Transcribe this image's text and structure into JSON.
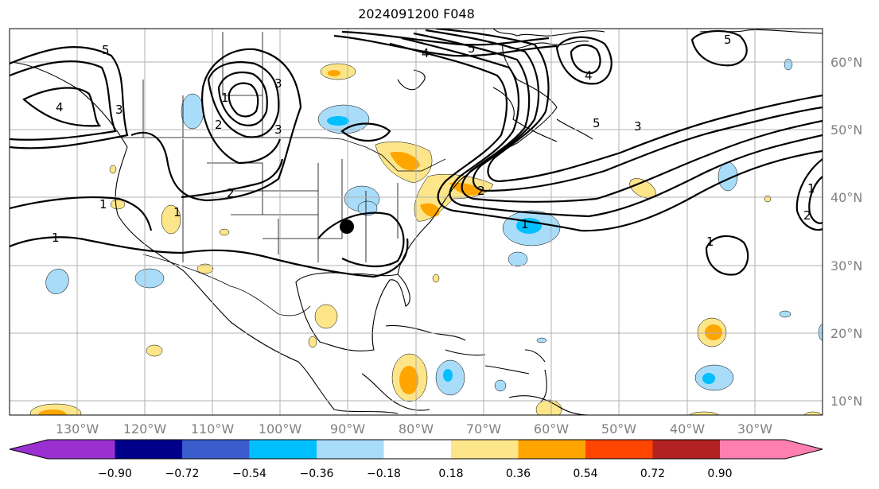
{
  "title": "2024091200 F048",
  "colors": {
    "levels": [
      "#9b30d0",
      "#00008b",
      "#3a5ccc",
      "#00bfff",
      "#a8dcf8",
      "#ffffff",
      "#fde68a",
      "#ffa500",
      "#ff4500",
      "#b22222",
      "#ff80b0"
    ],
    "contour": "#000000",
    "grid": "#b0b0b0"
  },
  "axes": {
    "lon_labels": [
      "130°W",
      "120°W",
      "110°W",
      "100°W",
      "90°W",
      "80°W",
      "70°W",
      "60°W",
      "50°W",
      "40°W",
      "30°W"
    ],
    "lat_labels": [
      "60°N",
      "50°N",
      "40°N",
      "30°N",
      "20°N",
      "10°N"
    ]
  },
  "colorbar": {
    "ticks": [
      "−0.90",
      "−0.72",
      "−0.54",
      "−0.36",
      "−0.18",
      "0.18",
      "0.36",
      "0.54",
      "0.72",
      "0.90"
    ]
  },
  "contour_labels": [
    "5",
    "4",
    "3",
    "2",
    "1",
    "1",
    "1",
    "1",
    "2",
    "3",
    "4",
    "5",
    "3",
    "2",
    "1",
    "1",
    "2",
    "5",
    "4",
    "3",
    "5",
    "1"
  ],
  "marker": {
    "name": "storm-center",
    "symbol": "●"
  }
}
